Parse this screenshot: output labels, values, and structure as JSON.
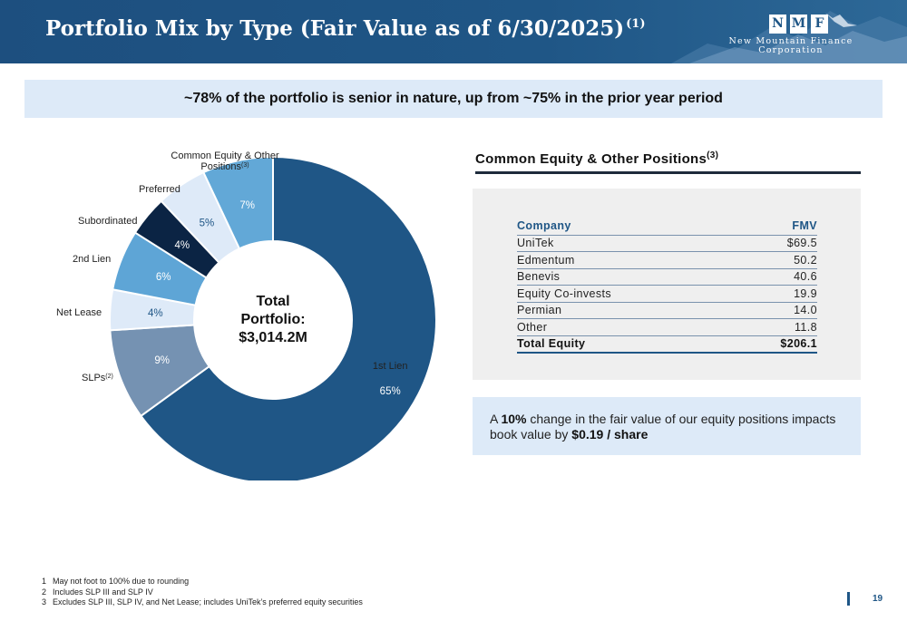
{
  "header": {
    "title": "Portfolio Mix by Type (Fair Value as of 6/30/2025)",
    "title_sup": "(1)",
    "logo_letters": [
      "N",
      "M",
      "F"
    ],
    "logo_line1": "New Mountain Finance",
    "logo_line2": "Corporation"
  },
  "banner": {
    "text": "~78% of the portfolio is senior in nature, up from ~75% in the prior year period"
  },
  "chart_data": {
    "type": "pie",
    "variant": "donut",
    "center_label": [
      "Total",
      "Portfolio:",
      "$3,014.2M"
    ],
    "categories": [
      "1st Lien",
      "SLPs",
      "Net Lease",
      "2nd Lien",
      "Subordinated",
      "Preferred",
      "Common Equity & Other Positions"
    ],
    "label_sups": [
      "",
      "(2)",
      "",
      "",
      "",
      "",
      "(3)"
    ],
    "values": [
      65,
      9,
      4,
      6,
      4,
      5,
      7
    ],
    "value_labels": [
      "65%",
      "9%",
      "4%",
      "6%",
      "4%",
      "5%",
      "7%"
    ],
    "colors": [
      "#1f5686",
      "#7592b2",
      "#deeaf8",
      "#5ea5d6",
      "#0b2444",
      "#deeaf8",
      "#62a8d7"
    ],
    "value_label_colors": [
      "#ffffff",
      "#ffffff",
      "#1f5686",
      "#ffffff",
      "#ffffff",
      "#1f5686",
      "#ffffff"
    ]
  },
  "equity": {
    "title": "Common Equity & Other Positions",
    "title_sup": "(3)",
    "headers": {
      "company": "Company",
      "fmv": "FMV"
    },
    "rows": [
      {
        "company": "UniTek",
        "fmv": "$69.5"
      },
      {
        "company": "Edmentum",
        "fmv": "50.2"
      },
      {
        "company": "Benevis",
        "fmv": "40.6"
      },
      {
        "company": "Equity Co-invests",
        "fmv": "19.9"
      },
      {
        "company": "Permian",
        "fmv": "14.0"
      },
      {
        "company": "Other",
        "fmv": "11.8"
      }
    ],
    "total": {
      "company": "Total Equity",
      "fmv": "$206.1"
    }
  },
  "note": {
    "part1": "A ",
    "bold1": "10%",
    "part2": " change in the fair value of our equity positions impacts book value by ",
    "bold2": "$0.19 / share"
  },
  "footnotes": [
    {
      "n": "1",
      "text": "May not foot to 100% due to rounding"
    },
    {
      "n": "2",
      "text": "Includes SLP III and SLP IV"
    },
    {
      "n": "3",
      "text": "Excludes SLP III, SLP IV, and Net Lease; includes UniTek’s preferred equity securities"
    }
  ],
  "page_number": "19"
}
